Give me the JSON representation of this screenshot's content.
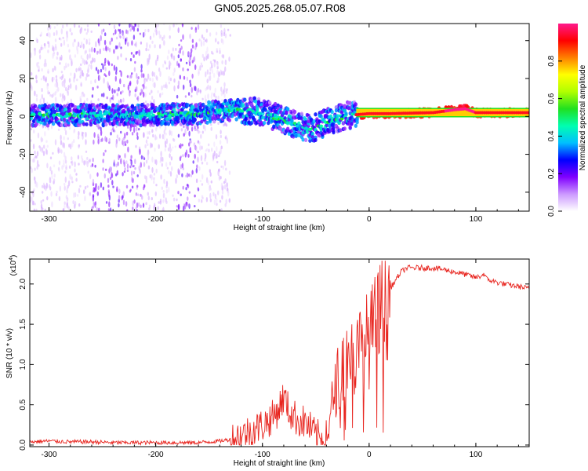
{
  "title": "GN05.2025.268.05.07.R08",
  "chart_data": [
    {
      "type": "heatmap",
      "title": "",
      "xlabel": "Height of straight line (km)",
      "ylabel": "Frequency (Hz)",
      "xlim": [
        -318,
        150
      ],
      "ylim": [
        -50,
        49
      ],
      "xticks": [
        -300,
        -200,
        -100,
        0,
        100
      ],
      "xtick_labels": [
        "-300",
        "-200",
        "-100",
        "0",
        "100"
      ],
      "yticks": [
        -40,
        -20,
        0,
        20,
        40
      ],
      "ytick_labels": [
        "-40",
        "-20",
        "0",
        "20",
        "40"
      ],
      "ridge": {
        "description": "dominant frequency ridge (Hz) vs height (km)",
        "x": [
          -318,
          -280,
          -240,
          -200,
          -160,
          -130,
          -110,
          -95,
          -80,
          -65,
          -55,
          -48,
          -40,
          -30,
          -20,
          -10,
          0,
          20,
          60,
          80,
          90,
          100,
          150
        ],
        "y": [
          0.5,
          0.8,
          0.6,
          0.8,
          1.5,
          3.5,
          3.0,
          1.0,
          -2.0,
          -5.0,
          -6.5,
          -5.5,
          -3.0,
          -1.0,
          0.5,
          1.0,
          1.5,
          1.5,
          2.0,
          3.5,
          4.0,
          2.0,
          2.0
        ]
      },
      "colorbar": {
        "label": "Normalized spectral amplitude",
        "range": [
          0,
          1
        ],
        "ticks": [
          0.0,
          0.2,
          0.4,
          0.6,
          0.8
        ],
        "tick_labels": [
          "0.0",
          "0.2",
          "0.4",
          "0.6",
          "0.8"
        ],
        "colors": [
          "#ffffff",
          "#cc99ff",
          "#8000ff",
          "#0000ff",
          "#00bfff",
          "#00ffb0",
          "#20e020",
          "#b0ff00",
          "#ffff00",
          "#ff8000",
          "#ff0000",
          "#ff1a8c"
        ]
      }
    },
    {
      "type": "line",
      "title": "",
      "xlabel": "Height of straight line (km)",
      "ylabel": "SNR (10 * v/v)",
      "scale_label": "(x10",
      "scale_exp": "4",
      "scale_close": ")",
      "xlim": [
        -318,
        150
      ],
      "ylim": [
        -0.02,
        2.31
      ],
      "xticks": [
        -300,
        -200,
        -100,
        0,
        100
      ],
      "xtick_labels": [
        "-300",
        "-200",
        "-100",
        "0",
        "100"
      ],
      "yticks": [
        0.0,
        0.5,
        1.0,
        1.5,
        2.0
      ],
      "ytick_labels": [
        "0.0",
        "0.5",
        "1.0",
        "1.5",
        "2.0"
      ],
      "color": "#e8251f",
      "series": [
        {
          "name": "SNR",
          "x": [
            -318,
            -300,
            -280,
            -260,
            -240,
            -220,
            -200,
            -180,
            -160,
            -140,
            -130,
            -120,
            -110,
            -100,
            -95,
            -90,
            -85,
            -80,
            -75,
            -70,
            -65,
            -60,
            -55,
            -50,
            -45,
            -40,
            -37,
            -35,
            -32,
            -30,
            -28,
            -25,
            -22,
            -20,
            -17,
            -15,
            -12,
            -10,
            -7,
            -5,
            -2,
            0,
            5,
            10,
            15,
            20,
            25,
            30,
            35,
            40,
            50,
            60,
            70,
            80,
            90,
            100,
            105,
            108,
            110,
            115,
            120,
            130,
            140,
            150
          ],
          "y": [
            0.04,
            0.05,
            0.04,
            0.04,
            0.03,
            0.03,
            0.03,
            0.03,
            0.03,
            0.05,
            0.07,
            0.12,
            0.18,
            0.25,
            0.3,
            0.35,
            0.45,
            0.6,
            0.42,
            0.35,
            0.3,
            0.28,
            0.2,
            0.12,
            0.08,
            0.1,
            0.2,
            0.5,
            0.7,
            0.8,
            0.85,
            1.0,
            1.05,
            1.1,
            1.15,
            1.05,
            1.1,
            1.15,
            1.2,
            1.25,
            1.3,
            1.3,
            1.45,
            1.6,
            1.75,
            1.95,
            2.05,
            2.15,
            2.2,
            2.2,
            2.2,
            2.2,
            2.18,
            2.15,
            2.12,
            2.08,
            2.1,
            2.13,
            2.06,
            2.04,
            2.02,
            1.99,
            1.97,
            1.94
          ]
        }
      ]
    }
  ]
}
